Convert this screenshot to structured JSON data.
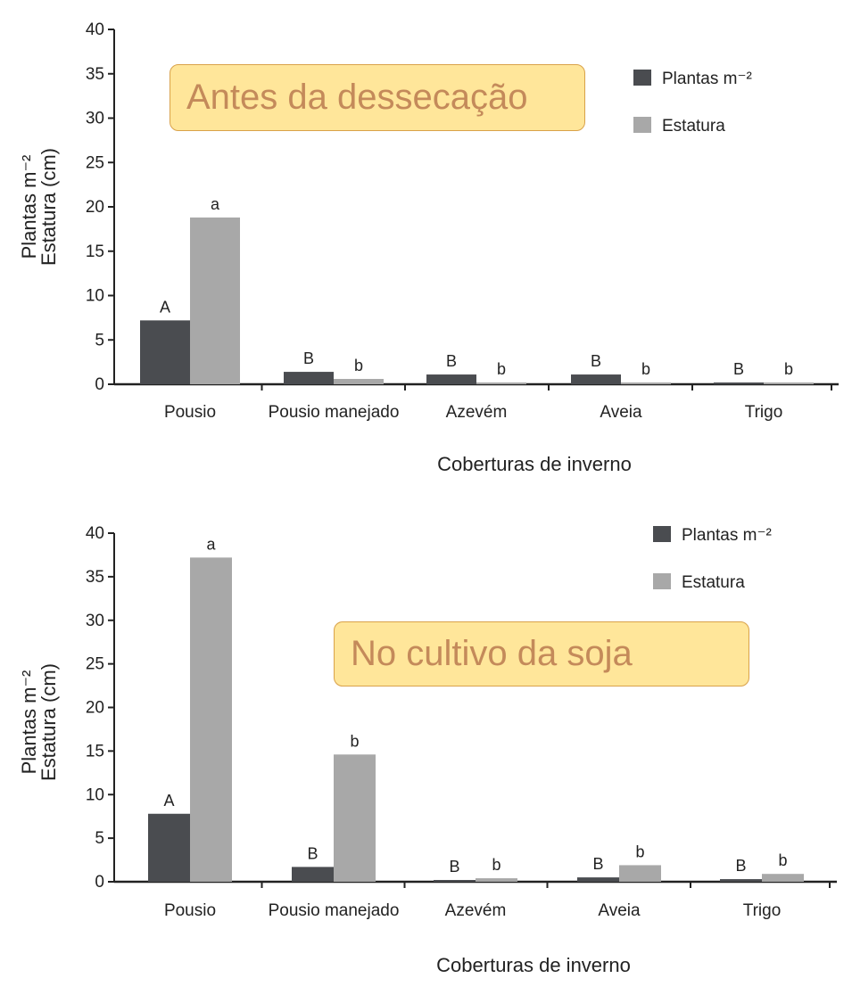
{
  "colors": {
    "plantas": "#4a4c50",
    "estatura": "#a8a8a8",
    "callout_bg": "#ffe69a",
    "callout_border": "#d9a24a",
    "callout_text": "#c48a5a"
  },
  "chart_data": [
    {
      "type": "bar",
      "callout": "Antes da dessecação",
      "categories": [
        "Pousio",
        "Pousio manejado",
        "Azevém",
        "Aveia",
        "Trigo"
      ],
      "series": [
        {
          "name": "Plantas m⁻²",
          "values": [
            7.2,
            1.4,
            1.1,
            1.1,
            0.2
          ],
          "letters": [
            "A",
            "B",
            "B",
            "B",
            "B"
          ]
        },
        {
          "name": "Estatura",
          "values": [
            18.8,
            0.6,
            0.2,
            0.2,
            0.1
          ],
          "letters": [
            "a",
            "b",
            "b",
            "b",
            "b"
          ]
        }
      ],
      "ylabel_lines": [
        "Plantas m⁻²",
        "Estatura (cm)"
      ],
      "xlabel": "Coberturas de inverno",
      "yticks": [
        0,
        5,
        10,
        15,
        20,
        25,
        30,
        35,
        40
      ],
      "ylim": [
        0,
        40
      ],
      "legend": "top-right",
      "grid": false
    },
    {
      "type": "bar",
      "callout": "No cultivo da soja",
      "categories": [
        "Pousio",
        "Pousio manejado",
        "Azevém",
        "Aveia",
        "Trigo"
      ],
      "series": [
        {
          "name": "Plantas m⁻²",
          "values": [
            7.8,
            1.7,
            0.1,
            0.5,
            0.3
          ],
          "letters": [
            "A",
            "B",
            "B",
            "B",
            "B"
          ]
        },
        {
          "name": "Estatura",
          "values": [
            37.2,
            14.6,
            0.4,
            1.9,
            0.9
          ],
          "letters": [
            "a",
            "b",
            "b",
            "b",
            "b"
          ]
        }
      ],
      "ylabel_lines": [
        "Plantas m⁻²",
        "Estatura (cm)"
      ],
      "xlabel": "Coberturas de inverno",
      "yticks": [
        0,
        5,
        10,
        15,
        20,
        25,
        30,
        35,
        40
      ],
      "ylim": [
        0,
        40
      ],
      "legend": "top-right",
      "grid": false
    }
  ]
}
